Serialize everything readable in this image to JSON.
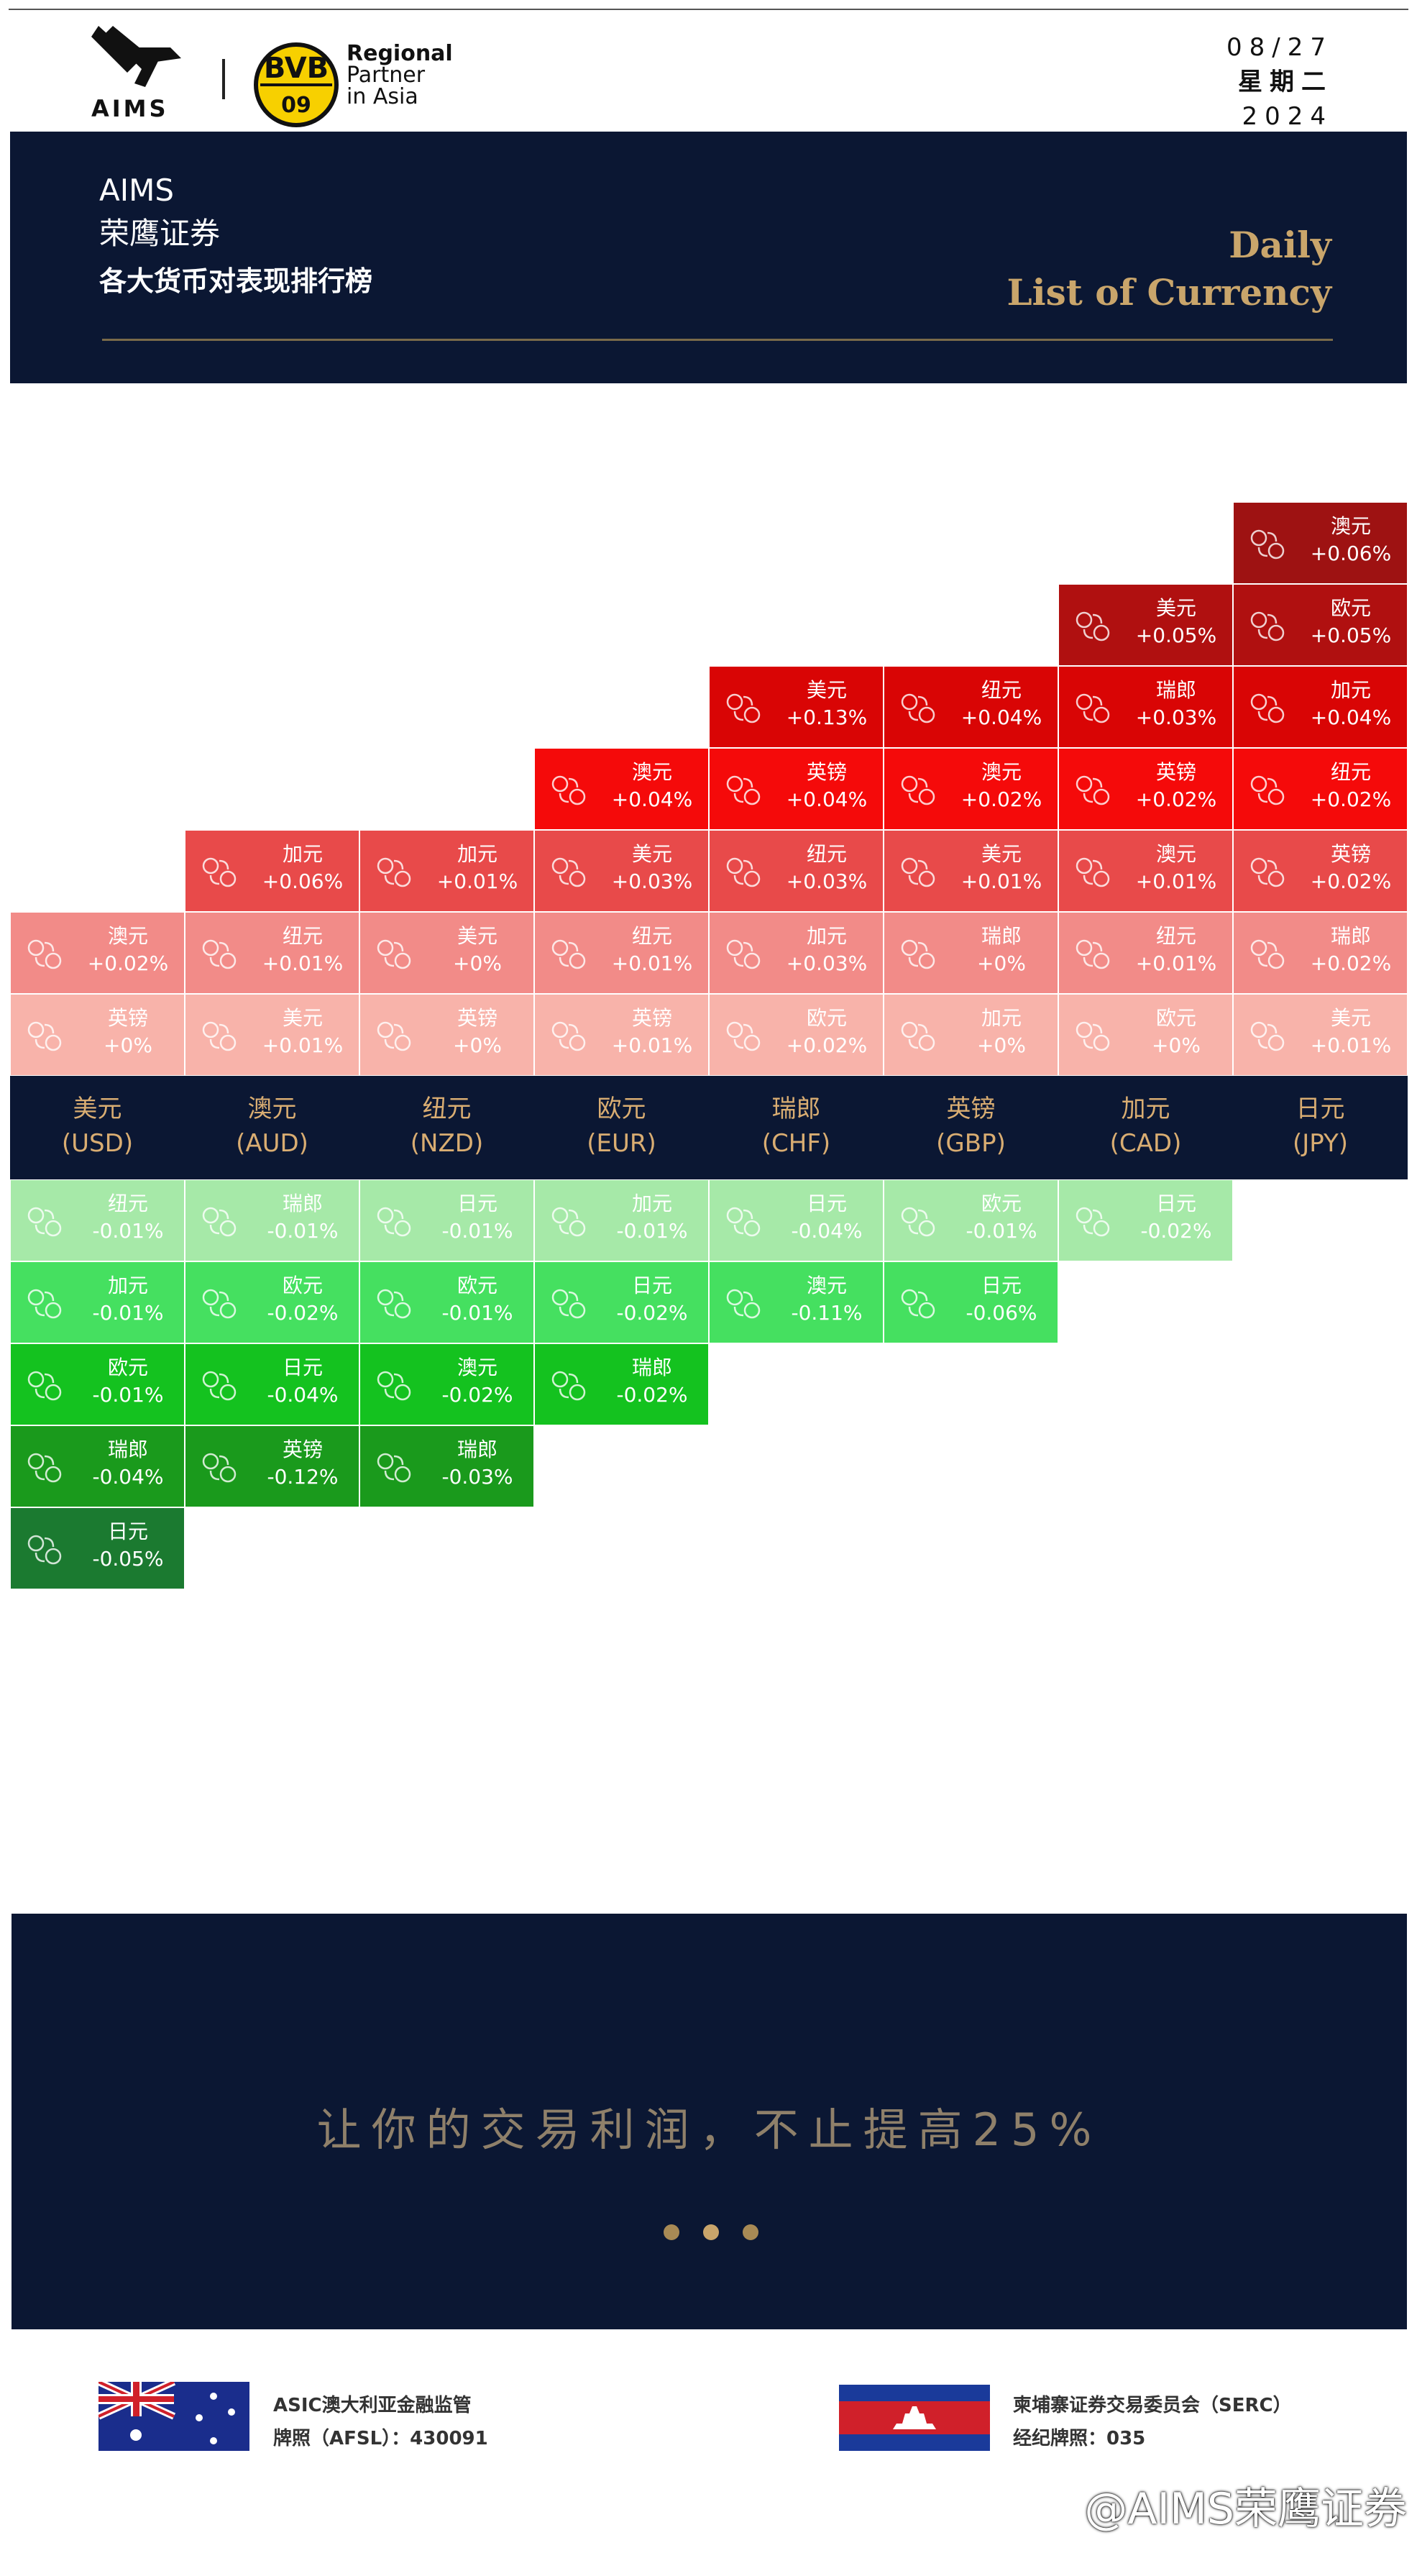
{
  "header": {
    "brand": "AIMS",
    "badge": [
      "BVB",
      "09"
    ],
    "partner": [
      "Regional",
      "Partner",
      "in Asia"
    ],
    "date": {
      "day": "08/27",
      "weekday": "星期二",
      "year": "2024"
    }
  },
  "banner": {
    "lines": [
      "AIMS",
      "荣鹰证券",
      "各大货币对表现排行榜"
    ],
    "title": [
      "Daily",
      "List of Currency"
    ]
  },
  "board": {
    "columns": [
      {
        "name": "美元",
        "code": "(USD)",
        "gains": [
          {
            "pair": "英镑",
            "change": "+0%"
          },
          {
            "pair": "澳元",
            "change": "+0.02%"
          }
        ],
        "losses": [
          {
            "pair": "纽元",
            "change": "-0.01%"
          },
          {
            "pair": "加元",
            "change": "-0.01%"
          },
          {
            "pair": "欧元",
            "change": "-0.01%"
          },
          {
            "pair": "瑞郎",
            "change": "-0.04%"
          },
          {
            "pair": "日元",
            "change": "-0.05%"
          }
        ]
      },
      {
        "name": "澳元",
        "code": "(AUD)",
        "gains": [
          {
            "pair": "美元",
            "change": "+0.01%"
          },
          {
            "pair": "纽元",
            "change": "+0.01%"
          },
          {
            "pair": "加元",
            "change": "+0.06%"
          }
        ],
        "losses": [
          {
            "pair": "瑞郎",
            "change": "-0.01%"
          },
          {
            "pair": "欧元",
            "change": "-0.02%"
          },
          {
            "pair": "日元",
            "change": "-0.04%"
          },
          {
            "pair": "英镑",
            "change": "-0.12%"
          }
        ]
      },
      {
        "name": "纽元",
        "code": "(NZD)",
        "gains": [
          {
            "pair": "英镑",
            "change": "+0%"
          },
          {
            "pair": "美元",
            "change": "+0%"
          },
          {
            "pair": "加元",
            "change": "+0.01%"
          }
        ],
        "losses": [
          {
            "pair": "日元",
            "change": "-0.01%"
          },
          {
            "pair": "欧元",
            "change": "-0.01%"
          },
          {
            "pair": "澳元",
            "change": "-0.02%"
          },
          {
            "pair": "瑞郎",
            "change": "-0.03%"
          }
        ]
      },
      {
        "name": "欧元",
        "code": "(EUR)",
        "gains": [
          {
            "pair": "英镑",
            "change": "+0.01%"
          },
          {
            "pair": "纽元",
            "change": "+0.01%"
          },
          {
            "pair": "美元",
            "change": "+0.03%"
          },
          {
            "pair": "澳元",
            "change": "+0.04%"
          }
        ],
        "losses": [
          {
            "pair": "加元",
            "change": "-0.01%"
          },
          {
            "pair": "日元",
            "change": "-0.02%"
          },
          {
            "pair": "瑞郎",
            "change": "-0.02%"
          }
        ]
      },
      {
        "name": "瑞郎",
        "code": "(CHF)",
        "gains": [
          {
            "pair": "欧元",
            "change": "+0.02%"
          },
          {
            "pair": "加元",
            "change": "+0.03%"
          },
          {
            "pair": "纽元",
            "change": "+0.03%"
          },
          {
            "pair": "英镑",
            "change": "+0.04%"
          },
          {
            "pair": "美元",
            "change": "+0.13%"
          }
        ],
        "losses": [
          {
            "pair": "日元",
            "change": "-0.04%"
          },
          {
            "pair": "澳元",
            "change": "-0.11%"
          }
        ]
      },
      {
        "name": "英镑",
        "code": "(GBP)",
        "gains": [
          {
            "pair": "加元",
            "change": "+0%"
          },
          {
            "pair": "瑞郎",
            "change": "+0%"
          },
          {
            "pair": "美元",
            "change": "+0.01%"
          },
          {
            "pair": "澳元",
            "change": "+0.02%"
          },
          {
            "pair": "纽元",
            "change": "+0.04%"
          }
        ],
        "losses": [
          {
            "pair": "欧元",
            "change": "-0.01%"
          },
          {
            "pair": "日元",
            "change": "-0.06%"
          }
        ]
      },
      {
        "name": "加元",
        "code": "(CAD)",
        "gains": [
          {
            "pair": "欧元",
            "change": "+0%"
          },
          {
            "pair": "纽元",
            "change": "+0.01%"
          },
          {
            "pair": "澳元",
            "change": "+0.01%"
          },
          {
            "pair": "英镑",
            "change": "+0.02%"
          },
          {
            "pair": "瑞郎",
            "change": "+0.03%"
          },
          {
            "pair": "美元",
            "change": "+0.05%"
          }
        ],
        "losses": [
          {
            "pair": "日元",
            "change": "-0.02%"
          }
        ]
      },
      {
        "name": "日元",
        "code": "(JPY)",
        "gains": [
          {
            "pair": "美元",
            "change": "+0.01%"
          },
          {
            "pair": "瑞郎",
            "change": "+0.02%"
          },
          {
            "pair": "英镑",
            "change": "+0.02%"
          },
          {
            "pair": "纽元",
            "change": "+0.02%"
          },
          {
            "pair": "加元",
            "change": "+0.04%"
          },
          {
            "pair": "欧元",
            "change": "+0.05%"
          },
          {
            "pair": "澳元",
            "change": "+0.06%"
          }
        ],
        "losses": []
      }
    ]
  },
  "promo": {
    "slogan": "让你的交易利润，不止提高25%"
  },
  "footer": {
    "left": [
      "ASIC澳大利亚金融监管",
      "牌照（AFSL）：430091"
    ],
    "right": [
      "柬埔寨证券交易委员会（SERC）",
      "经纪牌照：035"
    ]
  },
  "watermark": "@AIMS荣鹰证券"
}
